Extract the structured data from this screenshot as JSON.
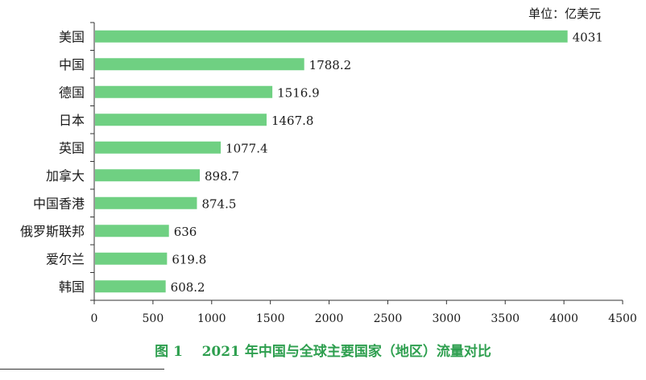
{
  "colors": {
    "bar": "#6fd082",
    "axis": "#333333",
    "caption": "#2e9f4f"
  },
  "chart_data": {
    "type": "bar",
    "orientation": "horizontal",
    "unit_label": "单位：亿美元",
    "categories": [
      "美国",
      "中国",
      "德国",
      "日本",
      "英国",
      "加拿大",
      "中国香港",
      "俄罗斯联邦",
      "爱尔兰",
      "韩国"
    ],
    "values": [
      4031,
      1788.2,
      1516.9,
      1467.8,
      1077.4,
      898.7,
      874.5,
      636,
      619.8,
      608.2
    ],
    "value_labels": [
      "4031",
      "1788.2",
      "1516.9",
      "1467.8",
      "1077.4",
      "898.7",
      "874.5",
      "636",
      "619.8",
      "608.2"
    ],
    "xlim": [
      0,
      4500
    ],
    "xticks": [
      0,
      500,
      1000,
      1500,
      2000,
      2500,
      3000,
      3500,
      4000,
      4500
    ],
    "grid": false,
    "caption": {
      "number": "图 1",
      "text": "2021 年中国与全球主要国家（地区）流量对比"
    }
  }
}
